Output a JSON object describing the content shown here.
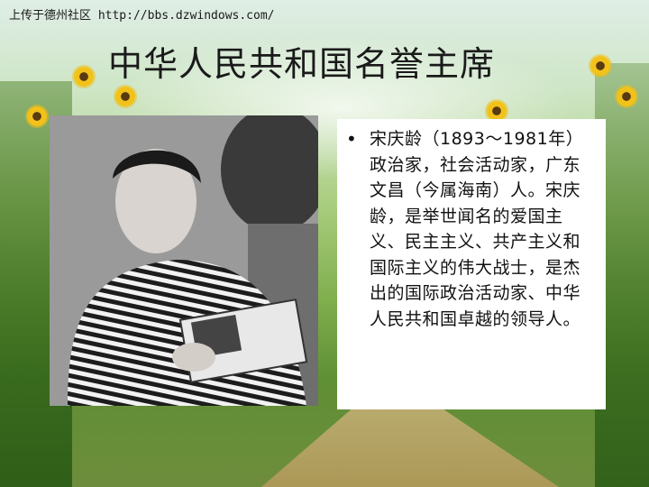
{
  "watermark": "上传于德州社区 http://bbs.dzwindows.com/",
  "title": "中华人民共和国名誉主席",
  "photo": {
    "icon": "portrait-photo"
  },
  "content": {
    "bullet_symbol": "•",
    "paragraph": "宋庆龄（1893～1981年）政治家，社会活动家，广东文昌（今属海南）人。宋庆龄，是举世闻名的爱国主义、民主主义、共产主义和国际主义的伟大战士，是杰出的国际政治活动家、中华人民共和国卓越的领导人。"
  },
  "colors": {
    "text": "#111111",
    "box_background": "#ffffff"
  }
}
